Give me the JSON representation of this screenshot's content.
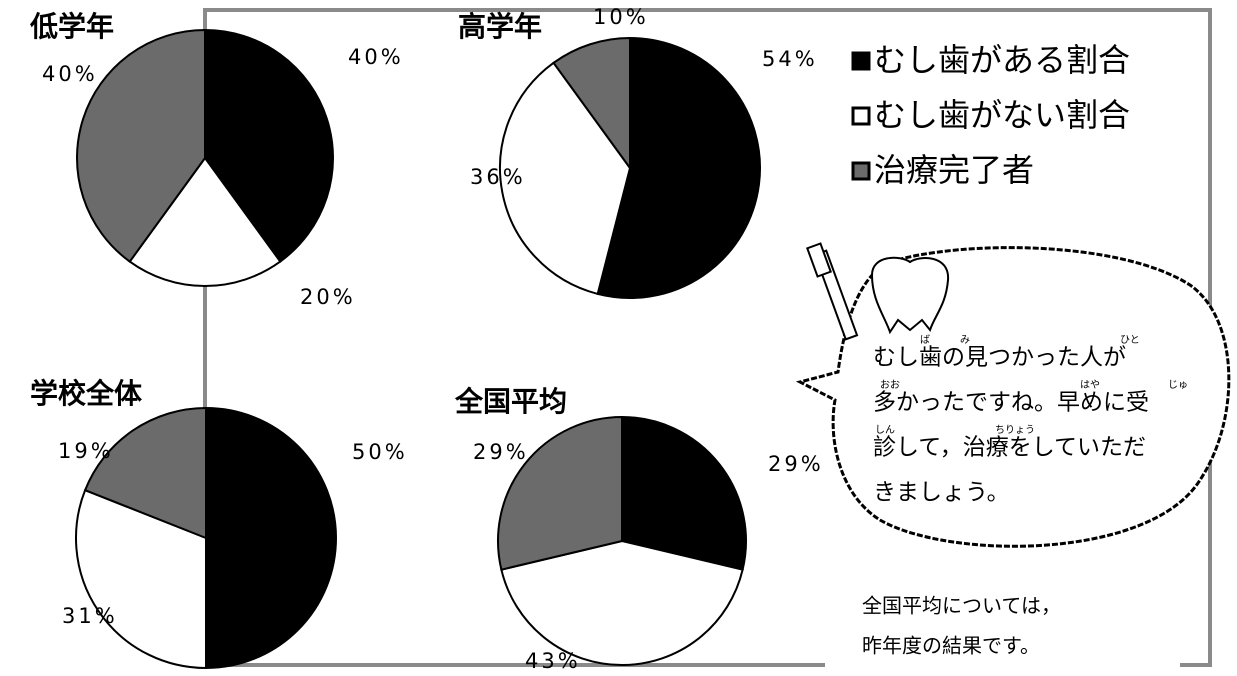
{
  "chart_data": [
    {
      "type": "pie",
      "title": "低学年",
      "categories": [
        "むし歯がある割合",
        "むし歯がない割合",
        "治療完了者"
      ],
      "colors": [
        "#000000",
        "#ffffff",
        "#6b6b6b"
      ],
      "values": [
        40,
        20,
        40
      ],
      "value_labels": [
        "40%",
        "20%",
        "40%"
      ]
    },
    {
      "type": "pie",
      "title": "高学年",
      "categories": [
        "むし歯がある割合",
        "むし歯がない割合",
        "治療完了者"
      ],
      "colors": [
        "#000000",
        "#ffffff",
        "#6b6b6b"
      ],
      "values": [
        54,
        36,
        10
      ],
      "value_labels": [
        "54%",
        "36%",
        "10%"
      ]
    },
    {
      "type": "pie",
      "title": "学校全体",
      "categories": [
        "むし歯がある割合",
        "むし歯がない割合",
        "治療完了者"
      ],
      "colors": [
        "#000000",
        "#ffffff",
        "#6b6b6b"
      ],
      "values": [
        50,
        31,
        19
      ],
      "value_labels": [
        "50%",
        "31%",
        "19%"
      ]
    },
    {
      "type": "pie",
      "title": "全国平均",
      "categories": [
        "むし歯がある割合",
        "むし歯がない割合",
        "治療完了者"
      ],
      "colors": [
        "#000000",
        "#ffffff",
        "#6b6b6b"
      ],
      "values": [
        29,
        43,
        29
      ],
      "value_labels": [
        "29%",
        "43%",
        "29%"
      ]
    }
  ],
  "bubble": {
    "lines": [
      "むし歯の見つかった人が",
      "多かったですね。早めに受",
      "診して，治療をしていただ",
      "きましょう。"
    ],
    "furigana": [
      "ば",
      "み",
      "ひと",
      "おお",
      "はや",
      "じゅ",
      "しん",
      "ちりょう"
    ]
  },
  "note": [
    "全国平均については，",
    "昨年度の結果です。"
  ]
}
